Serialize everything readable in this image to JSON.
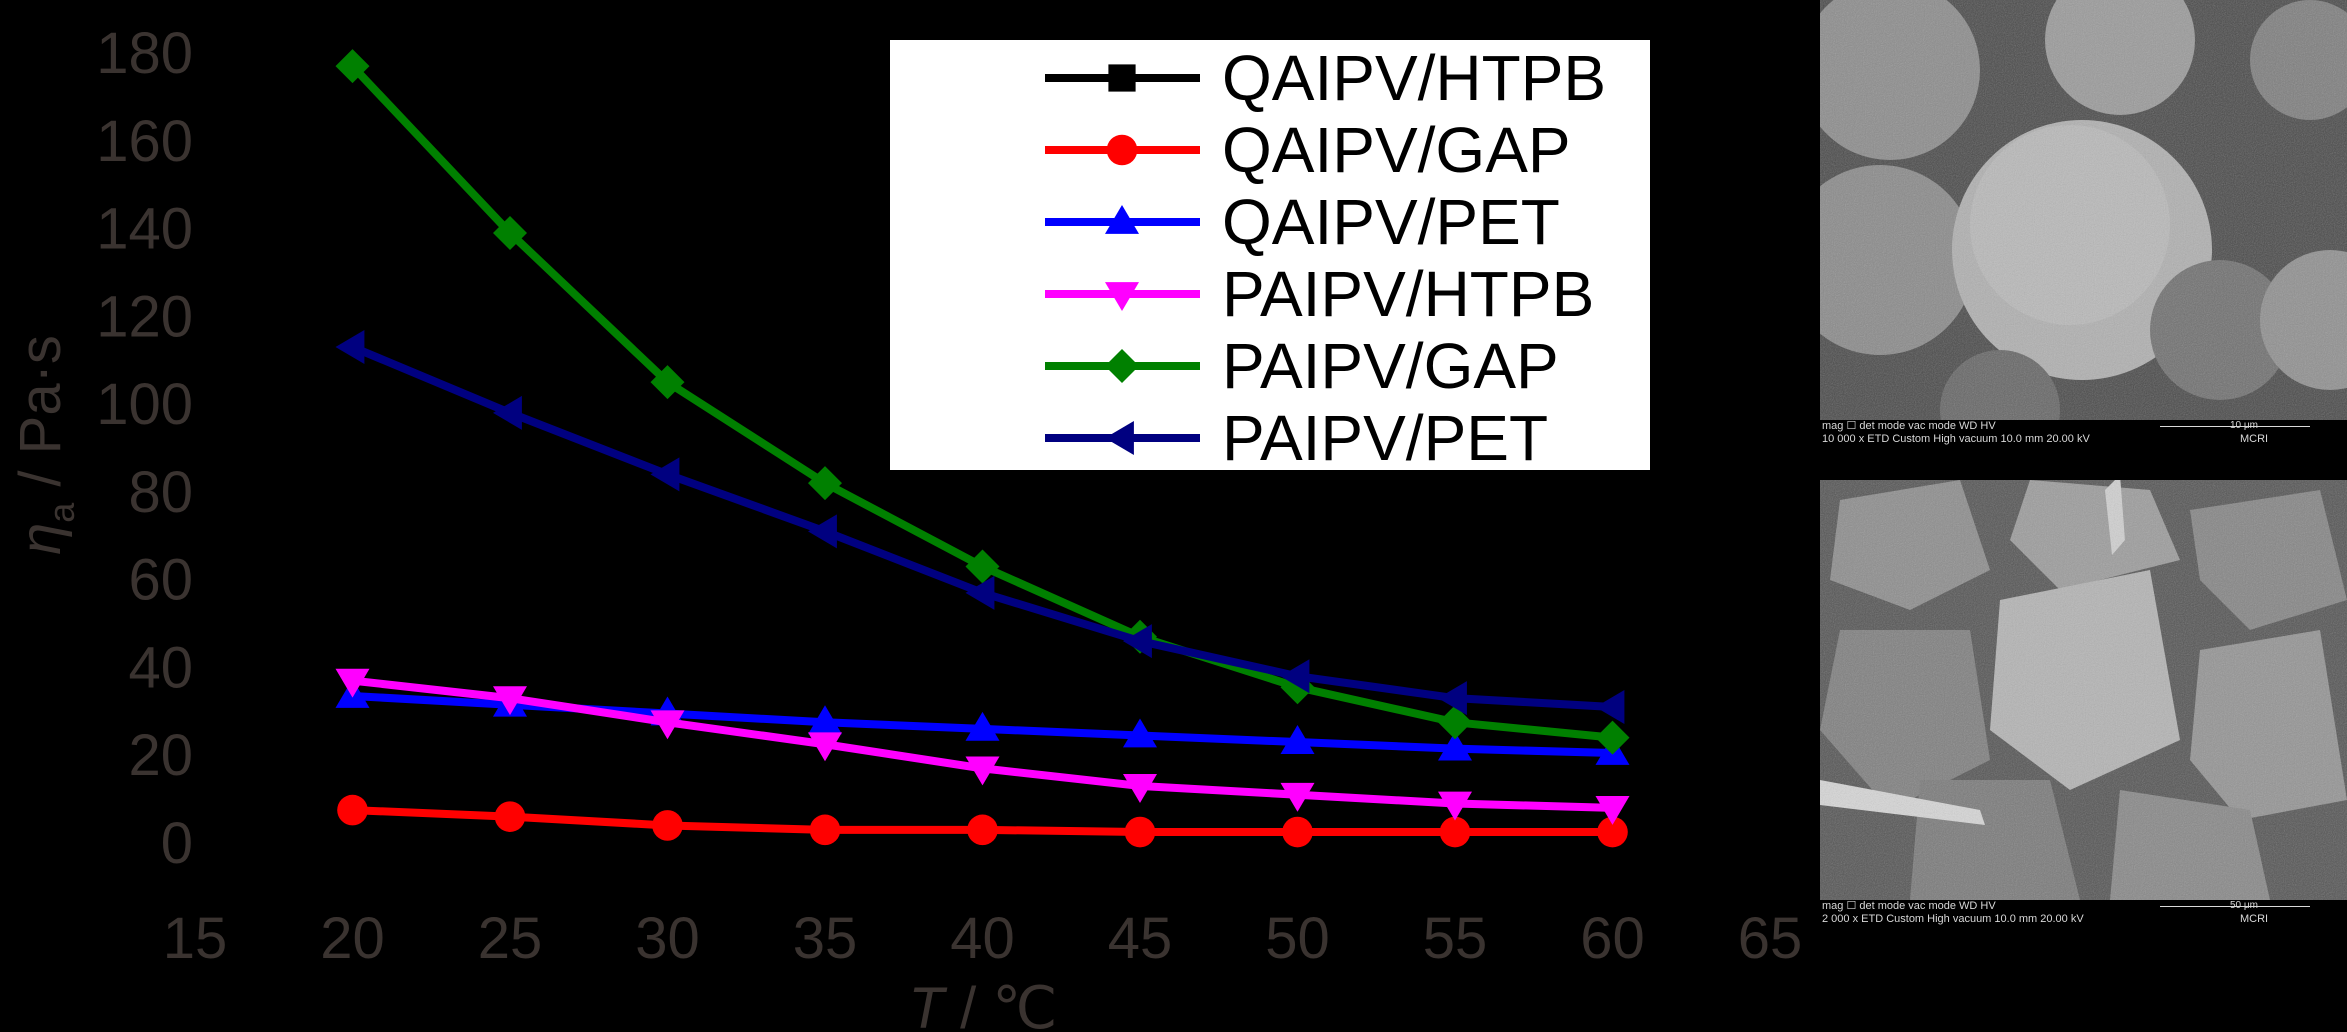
{
  "chart_data": {
    "type": "line",
    "xlabel": "T / ℃",
    "xlabel_var": "T",
    "xlabel_unit": " / ℃",
    "ylabel": "ηa / Pa·s",
    "ylabel_var": "η",
    "ylabel_sub": "a",
    "ylabel_unit": " / Pa·s",
    "xlim": [
      15,
      65
    ],
    "ylim": [
      0,
      180
    ],
    "xticks": [
      15,
      20,
      25,
      30,
      35,
      40,
      45,
      50,
      55,
      60,
      65
    ],
    "yticks": [
      0,
      20,
      40,
      60,
      80,
      100,
      120,
      140,
      160,
      180
    ],
    "grid": false,
    "legend_position": "top-right",
    "x": [
      20,
      25,
      30,
      35,
      40,
      45,
      50,
      55,
      60
    ],
    "series": [
      {
        "name": "QAIPV/HTPB",
        "color": "#000000",
        "marker": "square",
        "values": [
          null,
          null,
          null,
          null,
          null,
          null,
          null,
          null,
          null
        ]
      },
      {
        "name": "QAIPV/GAP",
        "color": "#ff0000",
        "marker": "circle",
        "values": [
          7.5,
          6,
          4,
          3,
          3,
          2.5,
          2.5,
          2.5,
          2.5
        ]
      },
      {
        "name": "QAIPV/PET",
        "color": "#0000ff",
        "marker": "triangle-up",
        "values": [
          33.5,
          31.5,
          29.5,
          27.5,
          26,
          24.5,
          23,
          21.5,
          20.5
        ]
      },
      {
        "name": "PAIPV/HTPB",
        "color": "#ff00ff",
        "marker": "triangle-down",
        "values": [
          37,
          33,
          27.5,
          22.5,
          17,
          13,
          11,
          9,
          8
        ]
      },
      {
        "name": "PAIPV/GAP",
        "color": "#008000",
        "marker": "diamond",
        "values": [
          177,
          139,
          105,
          82,
          63,
          47,
          35.5,
          27.5,
          24
        ]
      },
      {
        "name": "PAIPV/PET",
        "color": "#000080",
        "marker": "triangle-left",
        "values": [
          113,
          98,
          84,
          71,
          57,
          46,
          38,
          33,
          31
        ]
      }
    ]
  },
  "sem_images": [
    {
      "row1": "mag ☐  det   mode    vac mode     WD       HV",
      "row2": "10 000 x  ETD  Custom  High vacuum  10.0 mm  20.00 kV",
      "scale_label": "10 μm",
      "lab": "MCRI"
    },
    {
      "row1": "mag ☐  det   mode    vac mode     WD       HV",
      "row2": "2 000 x  ETD  Custom  High vacuum  10.0 mm  20.00 kV",
      "scale_label": "50 μm",
      "lab": "MCRI"
    }
  ]
}
